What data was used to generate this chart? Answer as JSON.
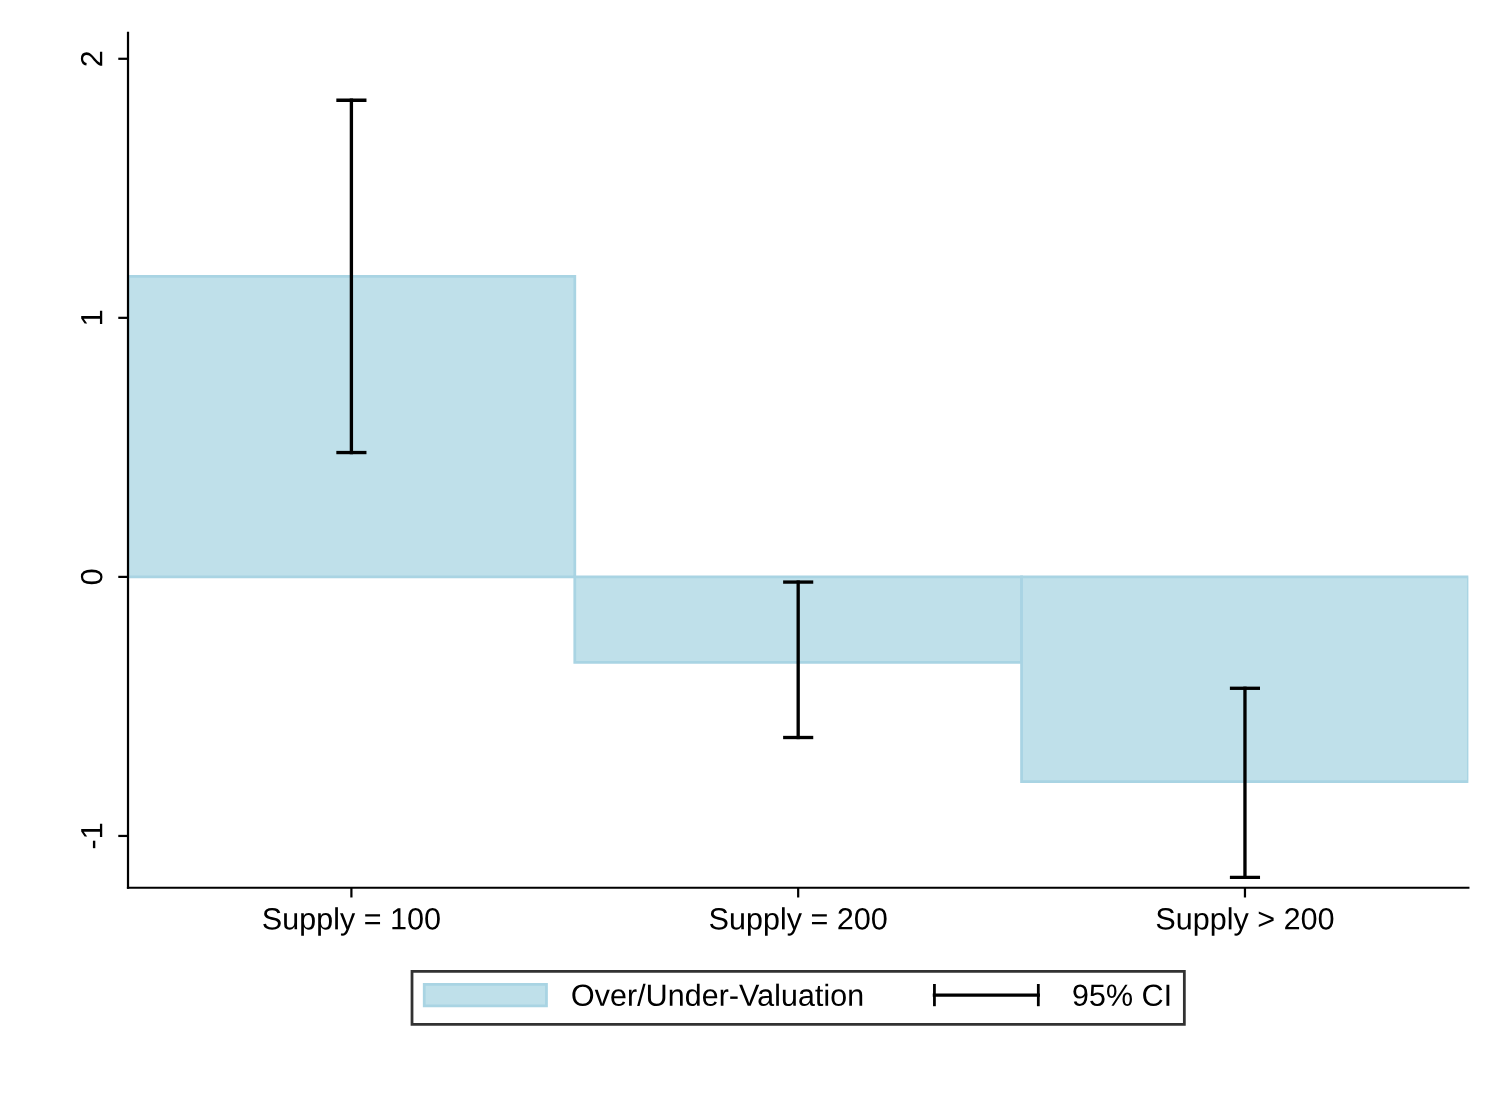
{
  "chart_data": {
    "type": "bar",
    "categories": [
      "Supply = 100",
      "Supply = 200",
      "Supply > 200"
    ],
    "series": [
      {
        "name": "Over/Under-Valuation",
        "color": "#bfe0ea",
        "values": [
          1.16,
          -0.33,
          -0.79
        ],
        "errors": [
          [
            0.48,
            1.84
          ],
          [
            -0.62,
            -0.02
          ],
          [
            -1.16,
            -0.43
          ]
        ]
      }
    ],
    "annotations": [
      "95% CI"
    ],
    "ylim": [
      -1.2,
      2.1
    ],
    "yticks": [
      -1,
      0,
      1,
      2
    ],
    "grid": false,
    "legend": "bottom"
  }
}
